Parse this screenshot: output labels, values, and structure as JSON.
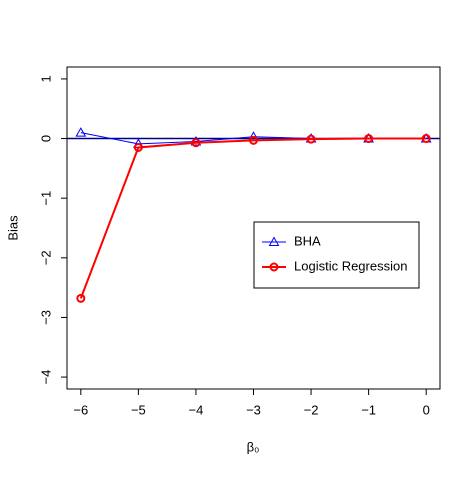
{
  "chart_data": {
    "type": "line",
    "xlabel": "β₀",
    "ylabel": "Bias",
    "x": [
      -6,
      -5,
      -4,
      -3,
      -2,
      -1,
      0
    ],
    "series": [
      {
        "name": "BHA",
        "color": "#0000ff",
        "marker": "triangle",
        "values": [
          0.1,
          -0.09,
          -0.05,
          0.03,
          0,
          0,
          0
        ]
      },
      {
        "name": "Logistic Regression",
        "color": "#ff0000",
        "marker": "circle",
        "values": [
          -2.68,
          -0.15,
          -0.07,
          -0.03,
          -0.01,
          0,
          0
        ]
      }
    ],
    "xlim": [
      -6.24,
      0.24
    ],
    "ylim": [
      -4.2,
      1.2
    ],
    "xticks": [
      {
        "value": -6,
        "label": "−6"
      },
      {
        "value": -5,
        "label": "−5"
      },
      {
        "value": -4,
        "label": "−4"
      },
      {
        "value": -3,
        "label": "−3"
      },
      {
        "value": -2,
        "label": "−2"
      },
      {
        "value": -1,
        "label": "−1"
      },
      0
    ],
    "yticks": [
      {
        "value": -4,
        "label": "−4"
      },
      {
        "value": -3,
        "label": "−3"
      },
      {
        "value": -2,
        "label": "−2"
      },
      {
        "value": -1,
        "label": "−1"
      },
      0,
      1
    ],
    "hline": 0,
    "hline_color": "#000080",
    "legend": "bottom-right"
  }
}
